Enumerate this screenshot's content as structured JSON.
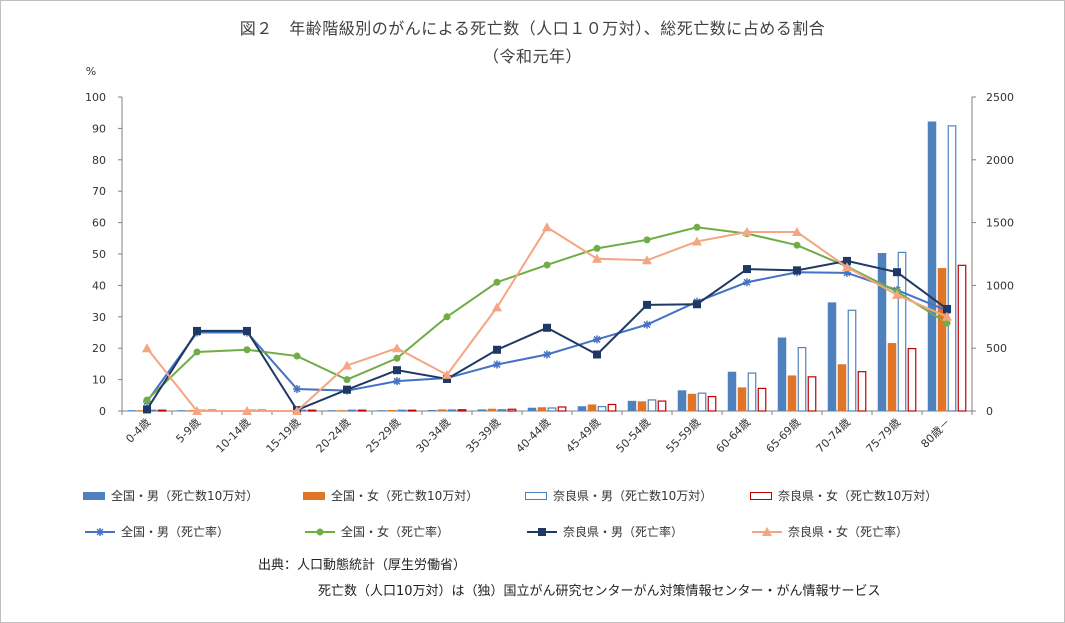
{
  "title": "図２　年齢階級別のがんによる死亡数（人口１０万対）、総死亡数に占める割合",
  "subtitle": "（令和元年）",
  "chart_data": {
    "type": "bar",
    "categories": [
      "0-4歳",
      "5-9歳",
      "10-14歳",
      "15-19歳",
      "20-24歳",
      "25-29歳",
      "30-34歳",
      "35-39歳",
      "40-44歳",
      "45-49歳",
      "50-54歳",
      "55-59歳",
      "60-64歳",
      "65-69歳",
      "70-74歳",
      "75-79歳",
      "80歳－"
    ],
    "left_axis": {
      "unit_label": "%",
      "min": 0,
      "max": 100,
      "step": 10,
      "ticks": [
        "0",
        "10",
        "20",
        "30",
        "40",
        "50",
        "60",
        "70",
        "80",
        "90",
        "100"
      ]
    },
    "right_axis": {
      "min": 0,
      "max": 2500,
      "step": 500,
      "ticks": [
        "0",
        "500",
        "1000",
        "1500",
        "2000",
        "2500"
      ]
    },
    "bar_series": [
      {
        "name": "全国・男（死亡数10万対）",
        "color": "#4f81bd",
        "style": "filled",
        "values": [
          1,
          1,
          1,
          1,
          3,
          5,
          8,
          13,
          26,
          38,
          81,
          165,
          313,
          585,
          865,
          1258,
          2305
        ]
      },
      {
        "name": "全国・女（死亡数10万対）",
        "color": "#e07429",
        "style": "filled",
        "values": [
          1,
          1,
          1,
          2,
          4,
          8,
          13,
          18,
          30,
          52,
          77,
          137,
          188,
          283,
          372,
          541,
          1138
        ]
      },
      {
        "name": "奈良県・男（死亡数10万対）",
        "color": "#4f81bd",
        "style": "outline",
        "values": [
          1,
          1,
          1,
          1,
          2,
          4,
          8,
          10,
          24,
          35,
          88,
          142,
          302,
          505,
          802,
          1263,
          2270
        ]
      },
      {
        "name": "奈良県・女（死亡数10万対）",
        "color": "#c00000",
        "style": "outline",
        "values": [
          1,
          1,
          1,
          1,
          2,
          5,
          10,
          14,
          32,
          52,
          79,
          115,
          180,
          272,
          313,
          497,
          1160
        ]
      }
    ],
    "line_series": [
      {
        "name": "全国・男（死亡率）",
        "color": "#4472c4",
        "marker": "star",
        "values": [
          3,
          25,
          25,
          7,
          6.5,
          9.5,
          10.5,
          14.8,
          18,
          22.8,
          27.5,
          34.8,
          41,
          44.2,
          44,
          38.5,
          32
        ]
      },
      {
        "name": "全国・女（死亡率）",
        "color": "#70ad47",
        "marker": "circle",
        "values": [
          3.5,
          18.8,
          19.5,
          17.5,
          10,
          16.8,
          30,
          41,
          46.5,
          51.8,
          54.5,
          58.5,
          56.5,
          52.8,
          46,
          38,
          28
        ]
      },
      {
        "name": "奈良県・男（死亡率）",
        "color": "#1f3864",
        "marker": "square",
        "values": [
          0.5,
          25.5,
          25.5,
          0.3,
          6.8,
          13,
          10.2,
          19.5,
          26.5,
          18,
          33.8,
          34,
          45.2,
          44.8,
          47.8,
          44.2,
          32.5
        ]
      },
      {
        "name": "奈良県・女（死亡率）",
        "color": "#f4a582",
        "marker": "triangle",
        "values": [
          20,
          0,
          0,
          0,
          14.5,
          20,
          11.5,
          33,
          58.5,
          48.5,
          48,
          54,
          57,
          57,
          45.8,
          37,
          30
        ]
      }
    ]
  },
  "source": {
    "line1": "出典：人口動態統計（厚生労働省）",
    "line2": "死亡数（人口10万対）は（独）国立がん研究センターがん対策情報センター・がん情報サービス"
  }
}
